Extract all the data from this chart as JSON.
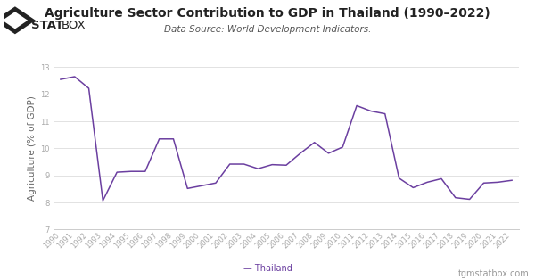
{
  "title": "Agriculture Sector Contribution to GDP in Thailand (1990–2022)",
  "subtitle": "Data Source: World Development Indicators.",
  "ylabel": "Agriculture (% of GDP)",
  "footer_left": "— Thailand",
  "footer_right": "tgmstatbox.com",
  "line_color": "#6b3fa0",
  "background_color": "#ffffff",
  "ylim": [
    7,
    13
  ],
  "yticks": [
    7,
    8,
    9,
    10,
    11,
    12,
    13
  ],
  "years": [
    1990,
    1991,
    1992,
    1993,
    1994,
    1995,
    1996,
    1997,
    1998,
    1999,
    2000,
    2001,
    2002,
    2003,
    2004,
    2005,
    2006,
    2007,
    2008,
    2009,
    2010,
    2011,
    2012,
    2013,
    2014,
    2015,
    2016,
    2017,
    2018,
    2019,
    2020,
    2021,
    2022
  ],
  "values": [
    12.55,
    12.65,
    12.22,
    8.07,
    9.12,
    9.15,
    9.15,
    10.35,
    10.35,
    8.52,
    8.62,
    8.72,
    9.42,
    9.42,
    9.25,
    9.4,
    9.38,
    9.82,
    10.22,
    9.82,
    10.05,
    11.58,
    11.38,
    11.28,
    8.9,
    8.55,
    8.75,
    8.88,
    8.18,
    8.12,
    8.72,
    8.75,
    8.82
  ],
  "title_fontsize": 10,
  "subtitle_fontsize": 7.5,
  "tick_fontsize": 6,
  "ylabel_fontsize": 7.5,
  "footer_fontsize": 7,
  "line_width": 1.1,
  "grid_color": "#dddddd",
  "tick_color": "#aaaaaa",
  "spine_color": "#cccccc",
  "logo_diamond_outer": "#222222",
  "logo_diamond_inner": "#ffffff",
  "logo_stat_color": "#222222",
  "logo_box_color": "#222222"
}
